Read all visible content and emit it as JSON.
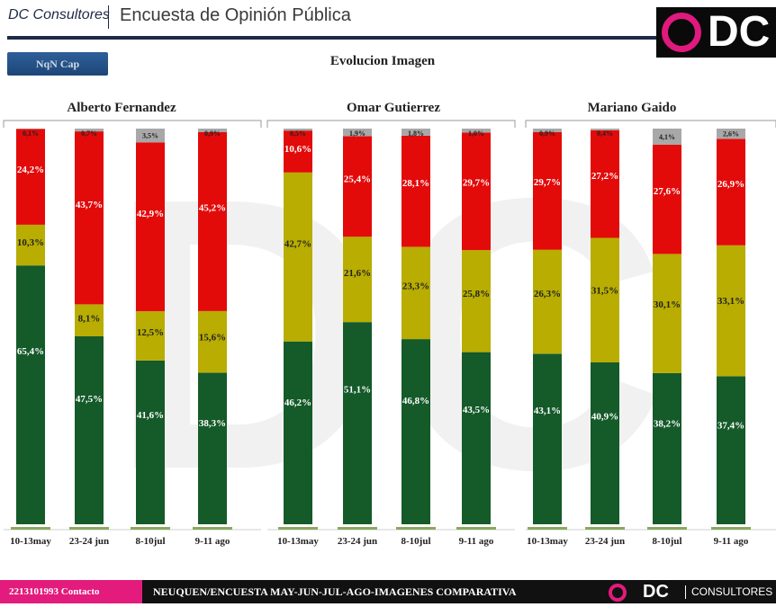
{
  "header": {
    "brand": "DC Consultores",
    "title": "Encuesta de Opinión Pública",
    "logo_text": "DC"
  },
  "tag": "NqN Cap",
  "subtitle": "Evolucion Imagen",
  "colors": {
    "positive": "#155a29",
    "regular": "#b8ad00",
    "negative": "#e30a0a",
    "nsnc": "#a8a8a8",
    "accent": "#e31b7c"
  },
  "chart_data": [
    {
      "type": "bar",
      "stacked": true,
      "title": "Alberto Fernandez",
      "categories": [
        "10-13may",
        "23-24 jun",
        "8-10jul",
        "9-11 ago"
      ],
      "series": [
        {
          "key": "positive",
          "values": [
            65.4,
            47.5,
            41.6,
            38.3
          ],
          "labels": [
            "65,4%",
            "47,5%",
            "41,6%",
            "38,3%"
          ]
        },
        {
          "key": "regular",
          "values": [
            10.3,
            8.1,
            12.5,
            15.6
          ],
          "labels": [
            "10,3%",
            "8,1%",
            "12,5%",
            "15,6%"
          ]
        },
        {
          "key": "negative",
          "values": [
            24.2,
            43.7,
            42.9,
            45.2
          ],
          "labels": [
            "24,2%",
            "43,7%",
            "42,9%",
            "45,2%"
          ]
        },
        {
          "key": "nsnc",
          "values": [
            0.1,
            0.7,
            3.5,
            0.9
          ],
          "labels": [
            "0,1%",
            "0,7%",
            "3,5%",
            "0,9%"
          ]
        }
      ]
    },
    {
      "type": "bar",
      "stacked": true,
      "title": "Omar Gutierrez",
      "categories": [
        "10-13may",
        "23-24 jun",
        "8-10jul",
        "9-11 ago"
      ],
      "series": [
        {
          "key": "positive",
          "values": [
            46.2,
            51.1,
            46.8,
            43.5
          ],
          "labels": [
            "46,2%",
            "51,1%",
            "46,8%",
            "43,5%"
          ]
        },
        {
          "key": "regular",
          "values": [
            42.7,
            21.6,
            23.3,
            25.8
          ],
          "labels": [
            "42,7%",
            "21,6%",
            "23,3%",
            "25,8%"
          ]
        },
        {
          "key": "negative",
          "values": [
            10.6,
            25.4,
            28.1,
            29.7
          ],
          "labels": [
            "10,6%",
            "25,4%",
            "28,1%",
            "29,7%"
          ]
        },
        {
          "key": "nsnc",
          "values": [
            0.5,
            1.9,
            1.8,
            1.0
          ],
          "labels": [
            "0,5%",
            "1,9%",
            "1,8%",
            "1,0%"
          ]
        }
      ]
    },
    {
      "type": "bar",
      "stacked": true,
      "title": "Mariano Gaido",
      "categories": [
        "10-13may",
        "23-24 jun",
        "8-10jul",
        "9-11 ago"
      ],
      "series": [
        {
          "key": "positive",
          "values": [
            43.1,
            40.9,
            38.2,
            37.4
          ],
          "labels": [
            "43,1%",
            "40,9%",
            "38,2%",
            "37,4%"
          ]
        },
        {
          "key": "regular",
          "values": [
            26.3,
            31.5,
            30.1,
            33.1
          ],
          "labels": [
            "26,3%",
            "31,5%",
            "30,1%",
            "33,1%"
          ]
        },
        {
          "key": "negative",
          "values": [
            29.7,
            27.2,
            27.6,
            26.9
          ],
          "labels": [
            "29,7%",
            "27,2%",
            "27,6%",
            "26,9%"
          ]
        },
        {
          "key": "nsnc",
          "values": [
            0.9,
            0.4,
            4.1,
            2.6
          ],
          "labels": [
            "0,9%",
            "0,4%",
            "4,1%",
            "2,6%"
          ]
        }
      ]
    }
  ],
  "footer": {
    "contact": "2213101993  Contacto",
    "text": "NEUQUEN/ENCUESTA MAY-JUN-JUL-AGO-IMAGENES COMPARATIVA",
    "logo_dc": "DC",
    "logo_consultores": "CONSULTORES"
  }
}
